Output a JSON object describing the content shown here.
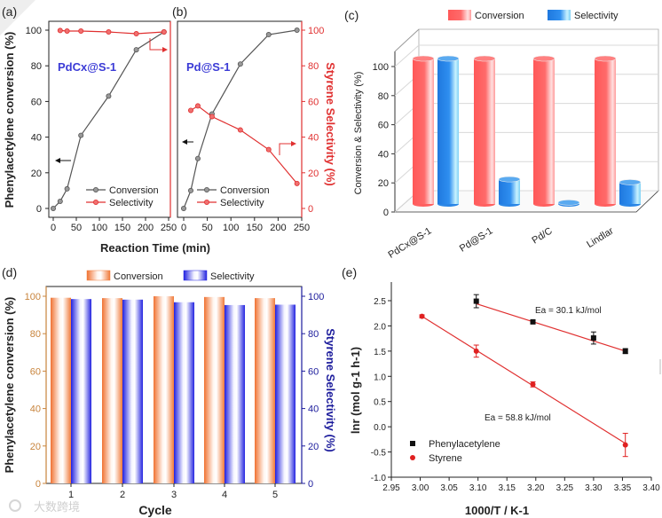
{
  "panel_labels": [
    "(a)",
    "(b)",
    "(c)",
    "(d)",
    "(e)"
  ],
  "watermark": "大数跨境",
  "colors": {
    "black": "#333333",
    "red": "#e03030",
    "blue_label": "#3b3bd6",
    "orange_axis": "#c8843c",
    "navy_axis": "#1c1c9c"
  },
  "chart_data": [
    {
      "id": "a",
      "type": "line",
      "annotation": "PdCx@S-1",
      "xlabel": "Reaction Time (min)",
      "ylabel": "Phenylacetylene conversion (%)",
      "xlim": [
        0,
        250
      ],
      "ylim": [
        0,
        100
      ],
      "xticks": [
        "0",
        "50",
        "100",
        "150",
        "200",
        "250"
      ],
      "yticks": [
        "0",
        "20",
        "40",
        "60",
        "80",
        "100"
      ],
      "legend": [
        "Conversion",
        "Selectivity"
      ],
      "series": [
        {
          "name": "Conversion",
          "color": "#555555",
          "x": [
            0,
            15,
            30,
            60,
            120,
            180,
            240
          ],
          "y": [
            0,
            4,
            11,
            41,
            63,
            89,
            99
          ]
        },
        {
          "name": "Selectivity",
          "color": "#e03030",
          "x": [
            15,
            30,
            60,
            120,
            180,
            240
          ],
          "y": [
            99.8,
            99.5,
            99.5,
            99,
            98,
            99
          ]
        }
      ]
    },
    {
      "id": "b",
      "type": "line",
      "annotation": "Pd@S-1",
      "ylabel_right": "Styrene Selectivity (%)",
      "xlim": [
        0,
        250
      ],
      "ylim": [
        0,
        100
      ],
      "xticks": [
        "0",
        "50",
        "100",
        "150",
        "200",
        "250"
      ],
      "yticks_right": [
        "0",
        "20",
        "40",
        "60",
        "80",
        "100"
      ],
      "legend": [
        "Conversion",
        "Selectivity"
      ],
      "series": [
        {
          "name": "Conversion",
          "color": "#555555",
          "x": [
            0,
            15,
            30,
            60,
            120,
            180,
            240
          ],
          "y": [
            0,
            10,
            28,
            53,
            81,
            97.5,
            100
          ]
        },
        {
          "name": "Selectivity",
          "color": "#e03030",
          "x": [
            15,
            30,
            60,
            120,
            180,
            240
          ],
          "y": [
            55,
            57.5,
            51.5,
            44,
            33,
            14
          ]
        }
      ]
    },
    {
      "id": "c",
      "type": "bar",
      "ylabel": "Conversion & Selectivity (%)",
      "ylim": [
        0,
        100
      ],
      "yticks": [
        "0",
        "20",
        "40",
        "60",
        "80",
        "100"
      ],
      "categories": [
        "PdCx@S-1",
        "Pd@S-1",
        "Pd/C",
        "Lindlar"
      ],
      "legend": [
        "Conversion",
        "Selectivity"
      ],
      "series": [
        {
          "name": "Conversion",
          "color": "#ff5a5a",
          "values": [
            100,
            100,
            100,
            100
          ]
        },
        {
          "name": "Selectivity",
          "color": "#2a86e6",
          "values": [
            100,
            17,
            1,
            15
          ]
        }
      ]
    },
    {
      "id": "d",
      "type": "bar",
      "xlabel": "Cycle",
      "ylabel": "Phenylacetylene conversion (%)",
      "ylabel_right": "Styrene Selectivity (%)",
      "ylim": [
        0,
        100
      ],
      "yticks": [
        "0",
        "20",
        "40",
        "60",
        "80",
        "100"
      ],
      "categories": [
        "1",
        "2",
        "3",
        "4",
        "5"
      ],
      "legend": [
        "Conversion",
        "Selectivity"
      ],
      "series": [
        {
          "name": "Conversion",
          "color": "#f07a3a",
          "values": [
            99.2,
            99,
            100,
            99.6,
            99
          ]
        },
        {
          "name": "Selectivity",
          "color": "#2424e0",
          "values": [
            98.5,
            98.2,
            96.8,
            95.3,
            95.5
          ]
        }
      ]
    },
    {
      "id": "e",
      "type": "scatter",
      "xlabel": "1000/T / K-1",
      "ylabel": "lnr (mol g-1 h-1)",
      "xlim": [
        2.95,
        3.4
      ],
      "ylim": [
        -1.0,
        2.5
      ],
      "xticks": [
        "2.95",
        "3.00",
        "3.05",
        "3.10",
        "3.15",
        "3.20",
        "3.25",
        "3.30",
        "3.35",
        "3.40"
      ],
      "yticks": [
        "-1.0",
        "-0.5",
        "0.0",
        "0.5",
        "1.0",
        "1.5",
        "2.0",
        "2.5"
      ],
      "legend": [
        "Phenylacetylene",
        "Styrene"
      ],
      "annotations": [
        "Ea = 30.1 kJ/mol",
        "Ea = 58.8 kJ/mol"
      ],
      "series": [
        {
          "name": "Phenylacetylene",
          "color": "#111111",
          "marker": "square",
          "x": [
            3.097,
            3.195,
            3.3,
            3.355
          ],
          "y": [
            2.49,
            2.08,
            1.76,
            1.5
          ],
          "err": [
            0.13,
            0.02,
            0.12,
            0.05
          ],
          "fit": [
            [
              3.097,
              2.44
            ],
            [
              3.355,
              1.5
            ]
          ]
        },
        {
          "name": "Styrene",
          "color": "#e02020",
          "marker": "circle",
          "x": [
            3.003,
            3.097,
            3.195,
            3.355
          ],
          "y": [
            2.19,
            1.5,
            0.84,
            -0.36
          ],
          "err": [
            0.03,
            0.12,
            0.05,
            0.23
          ],
          "fit": [
            [
              3.003,
              2.19
            ],
            [
              3.355,
              -0.33
            ]
          ]
        }
      ]
    }
  ]
}
